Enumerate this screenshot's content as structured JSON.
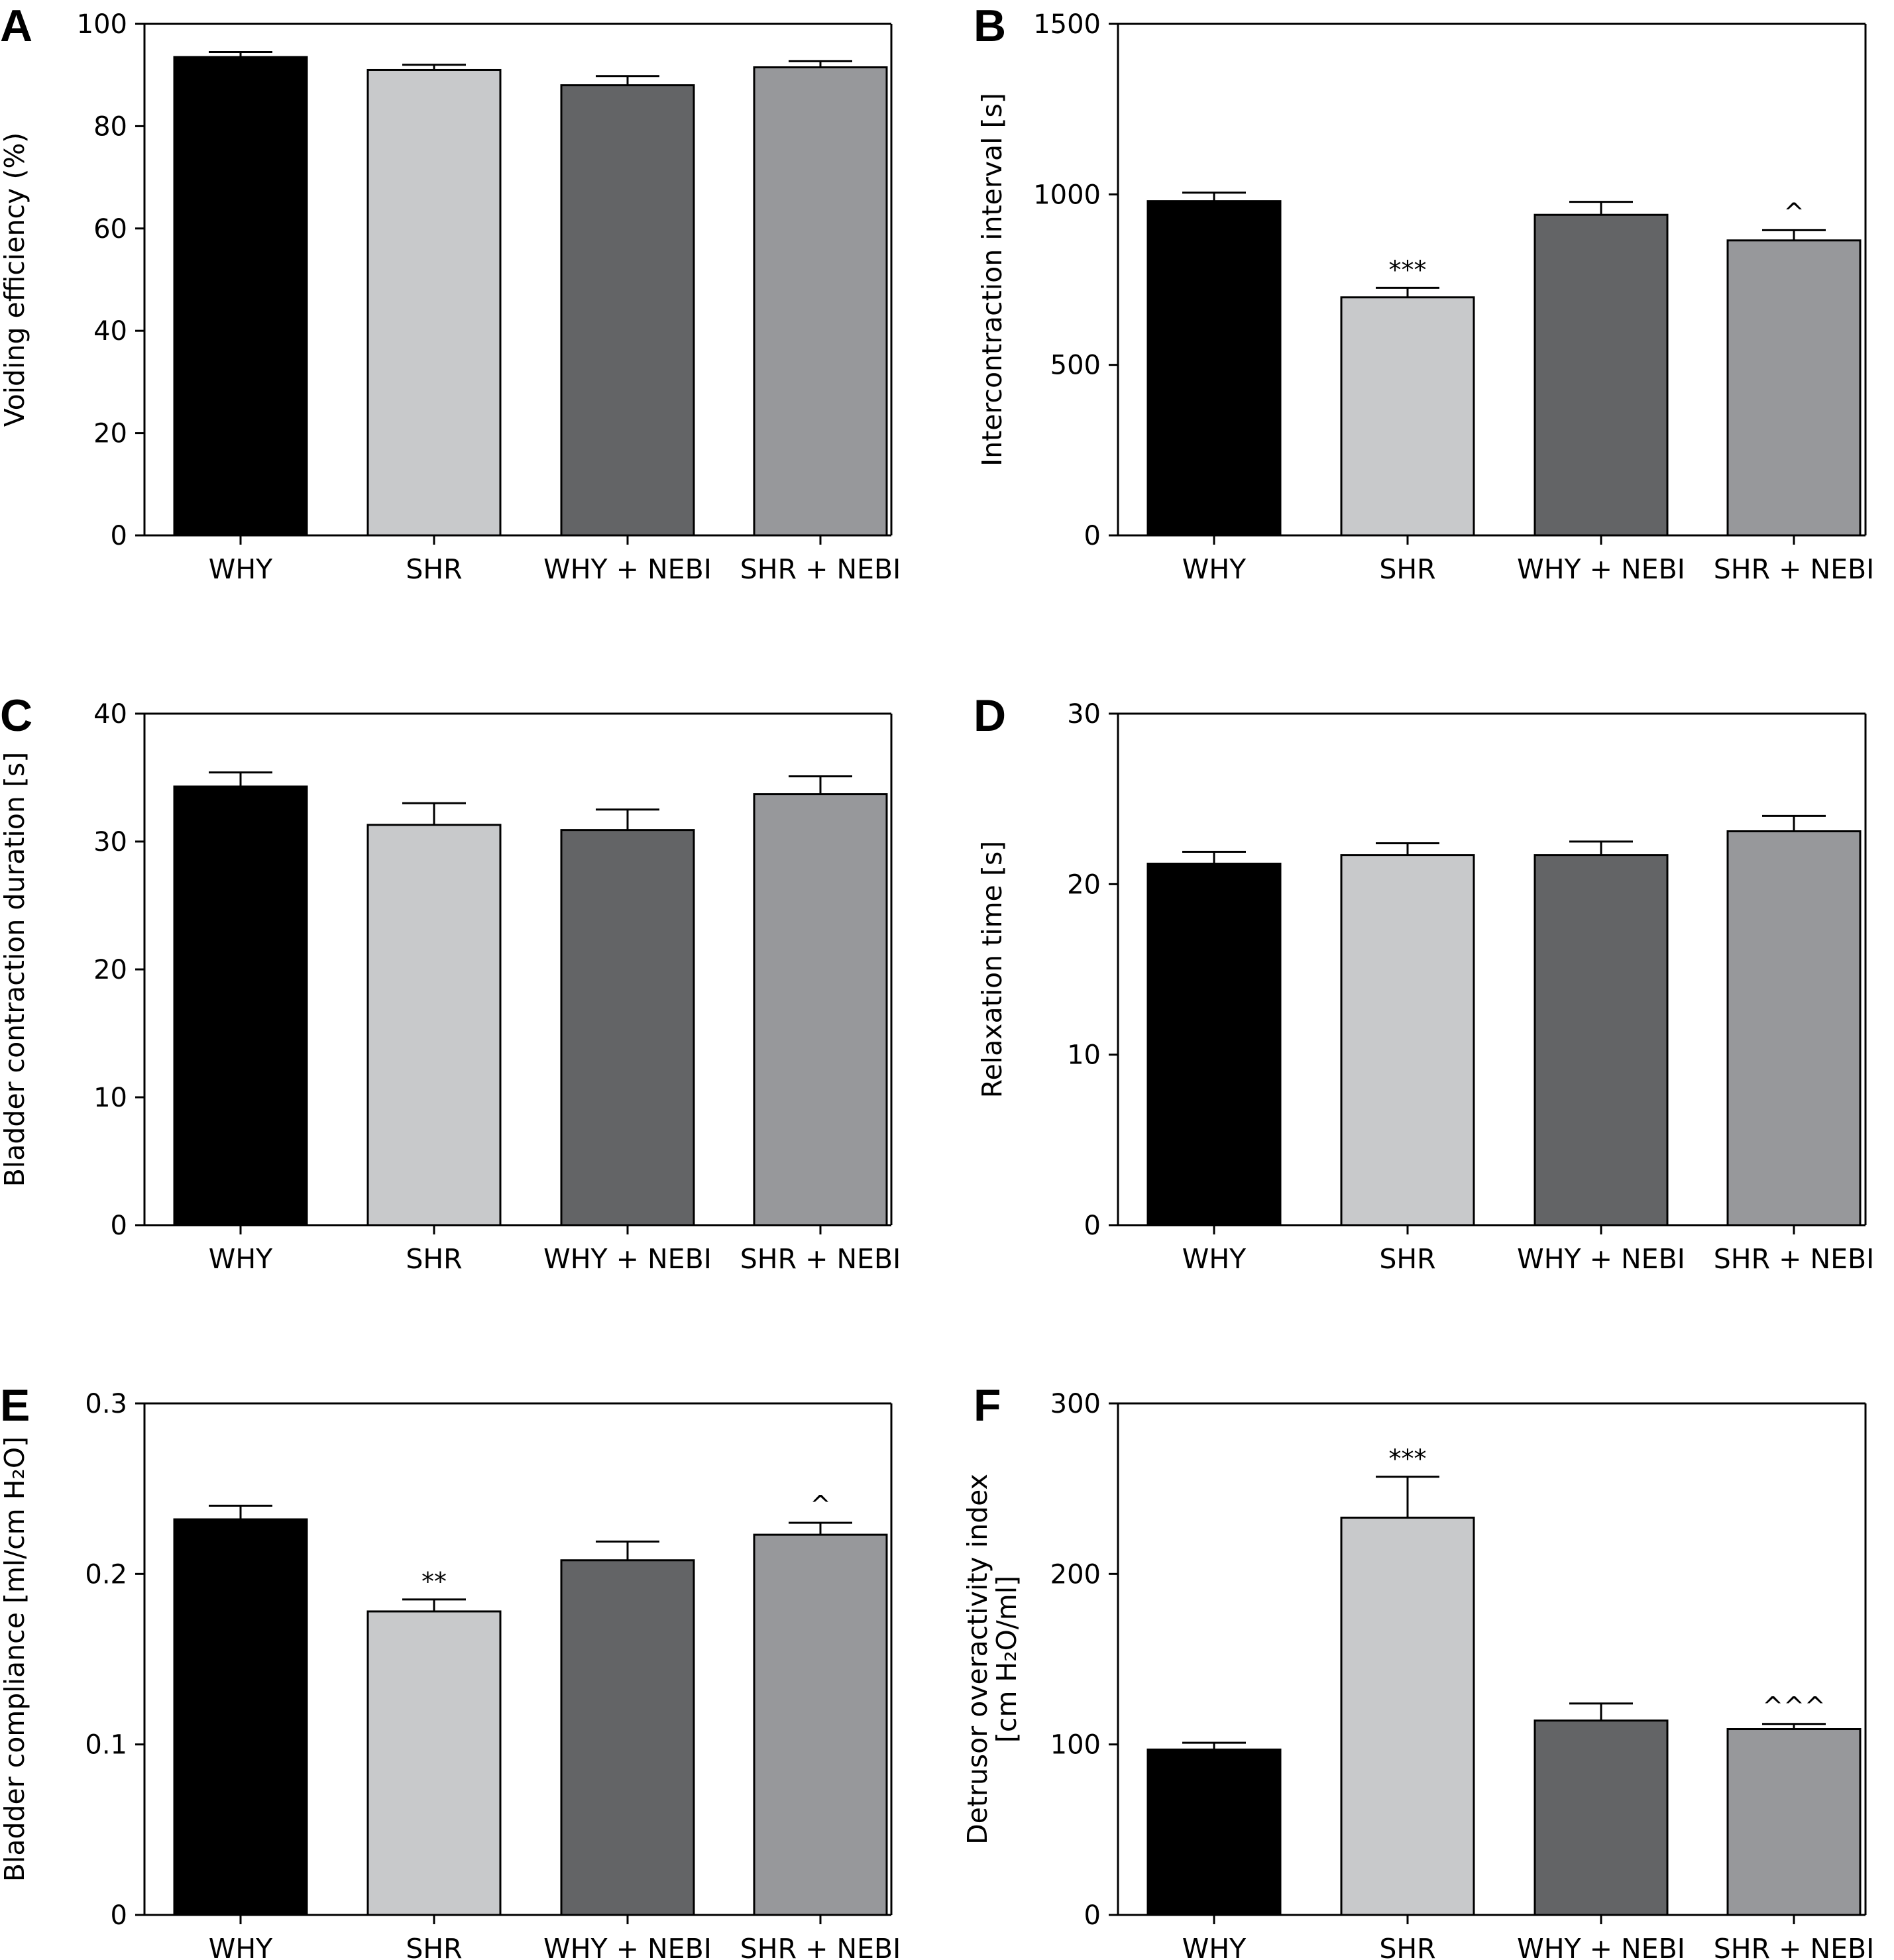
{
  "colors": {
    "WHY": "#000000",
    "SHR": "#c8c9cb",
    "WHY + NEBI": "#636466",
    "SHR + NEBI": "#97989b",
    "outline": "#000000"
  },
  "chart_data": [
    {
      "panel": "A",
      "type": "bar",
      "categories": [
        "WHY",
        "SHR",
        "WHY + NEBI",
        "SHR + NEBI"
      ],
      "values": [
        93.5,
        91,
        88,
        91.5
      ],
      "errors": [
        1.0,
        1.0,
        1.8,
        1.2
      ],
      "significance": [
        "",
        "",
        "",
        ""
      ],
      "ylabel": [
        "Voiding efficiency (%)"
      ],
      "ylim": [
        0,
        100
      ],
      "yticks": [
        "0",
        "20",
        "40",
        "60",
        "80",
        "100"
      ],
      "ytick_values": [
        0,
        20,
        40,
        60,
        80,
        100
      ]
    },
    {
      "panel": "B",
      "type": "bar",
      "categories": [
        "WHY",
        "SHR",
        "WHY + NEBI",
        "SHR + NEBI"
      ],
      "values": [
        980,
        698,
        940,
        865
      ],
      "errors": [
        25,
        28,
        38,
        30
      ],
      "significance": [
        "",
        "***",
        "",
        "^"
      ],
      "ylabel": [
        "Intercontraction interval [s]"
      ],
      "ylim": [
        0,
        1500
      ],
      "yticks": [
        "0",
        "500",
        "1000",
        "1500"
      ],
      "ytick_values": [
        0,
        500,
        1000,
        1500
      ]
    },
    {
      "panel": "C",
      "type": "bar",
      "categories": [
        "WHY",
        "SHR",
        "WHY + NEBI",
        "SHR + NEBI"
      ],
      "values": [
        34.3,
        31.3,
        30.9,
        33.7
      ],
      "errors": [
        1.1,
        1.7,
        1.6,
        1.4
      ],
      "significance": [
        "",
        "",
        "",
        ""
      ],
      "ylabel": [
        "Bladder contraction duration [s]"
      ],
      "ylim": [
        0,
        40
      ],
      "yticks": [
        "0",
        "10",
        "20",
        "30",
        "40"
      ],
      "ytick_values": [
        0,
        10,
        20,
        30,
        40
      ]
    },
    {
      "panel": "D",
      "type": "bar",
      "categories": [
        "WHY",
        "SHR",
        "WHY + NEBI",
        "SHR + NEBI"
      ],
      "values": [
        21.2,
        21.7,
        21.7,
        23.1
      ],
      "errors": [
        0.7,
        0.7,
        0.8,
        0.9
      ],
      "significance": [
        "",
        "",
        "",
        ""
      ],
      "ylabel": [
        "Relaxation time [s]"
      ],
      "ylim": [
        0,
        30
      ],
      "yticks": [
        "0",
        "10",
        "20",
        "30"
      ],
      "ytick_values": [
        0,
        10,
        20,
        30
      ]
    },
    {
      "panel": "E",
      "type": "bar",
      "categories": [
        "WHY",
        "SHR",
        "WHY + NEBI",
        "SHR + NEBI"
      ],
      "values": [
        0.232,
        0.178,
        0.208,
        0.223
      ],
      "errors": [
        0.008,
        0.007,
        0.011,
        0.007
      ],
      "significance": [
        "",
        "**",
        "",
        "^"
      ],
      "ylabel": [
        "Bladder compliance  [ml/cm H₂O]"
      ],
      "ylim": [
        0,
        0.3
      ],
      "yticks": [
        "0",
        "0.1",
        "0.2",
        "0.3"
      ],
      "ytick_values": [
        0,
        0.1,
        0.2,
        0.3
      ]
    },
    {
      "panel": "F",
      "type": "bar",
      "categories": [
        "WHY",
        "SHR",
        "WHY + NEBI",
        "SHR + NEBI"
      ],
      "values": [
        97,
        233,
        114,
        109
      ],
      "errors": [
        4,
        24,
        10,
        3
      ],
      "significance": [
        "",
        "***",
        "",
        "^^^"
      ],
      "ylabel": [
        "Detrusor overactivity index",
        "[cm H₂O/ml]"
      ],
      "ylim": [
        0,
        300
      ],
      "yticks": [
        "0",
        "100",
        "200",
        "300"
      ],
      "ytick_values": [
        0,
        100,
        200,
        300
      ]
    }
  ]
}
